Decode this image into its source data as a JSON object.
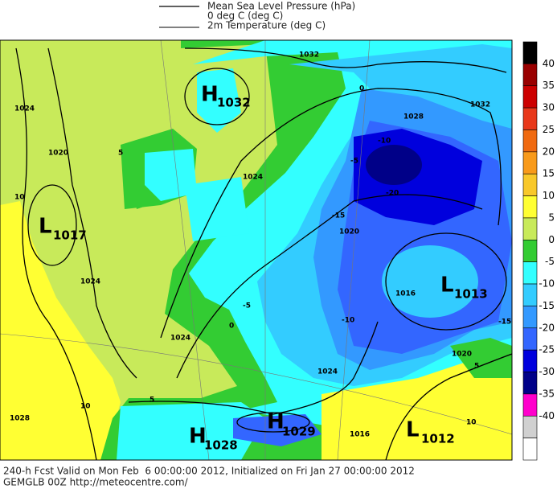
{
  "legend": [
    "Mean Sea Level Pressure (hPa)",
    "0 deg C (deg C)",
    "2m Temperature (deg C)"
  ],
  "footer": [
    "240-h Fcst Valid on Mon Feb  6 00:00:00 2012, Initialized on Fri Jan 27 00:00:00 2012",
    "GEMGLB 00Z http://meteocentre.com/"
  ],
  "centers": [
    {
      "letter": "H",
      "value": "1032"
    },
    {
      "letter": "L",
      "value": "1017"
    },
    {
      "letter": "L",
      "value": "1013"
    },
    {
      "letter": "H",
      "value": "1028"
    },
    {
      "letter": "H",
      "value": "1029"
    },
    {
      "letter": "L",
      "value": "1012"
    }
  ],
  "contour_labels": [
    "1032",
    "1032",
    "1028",
    "1024",
    "1020",
    "1024",
    "1024",
    "1024",
    "1020",
    "1016",
    "1024",
    "1016",
    "1020",
    "1028",
    "10",
    "10",
    "5",
    "0",
    "5",
    "-5",
    "-10",
    "-15",
    "-20",
    "-5",
    "-10",
    "-15",
    "5",
    "10",
    "0"
  ],
  "colorbar": {
    "labels": [
      "40",
      "35",
      "30",
      "25",
      "20",
      "15",
      "10",
      "5",
      "0",
      "-5",
      "-10",
      "-15",
      "-20",
      "-25",
      "-30",
      "-35",
      "-40"
    ],
    "colors": [
      "#000000",
      "#990000",
      "#cc0000",
      "#e8381a",
      "#f06a10",
      "#f89a1a",
      "#f8c82a",
      "#ffff33",
      "#c8ea5a",
      "#33cc33",
      "#33ffff",
      "#33ccff",
      "#3399ff",
      "#3366ff",
      "#0000dd",
      "#000088",
      "#ff00cc",
      "#d0d0d0",
      "#ffffff"
    ]
  }
}
